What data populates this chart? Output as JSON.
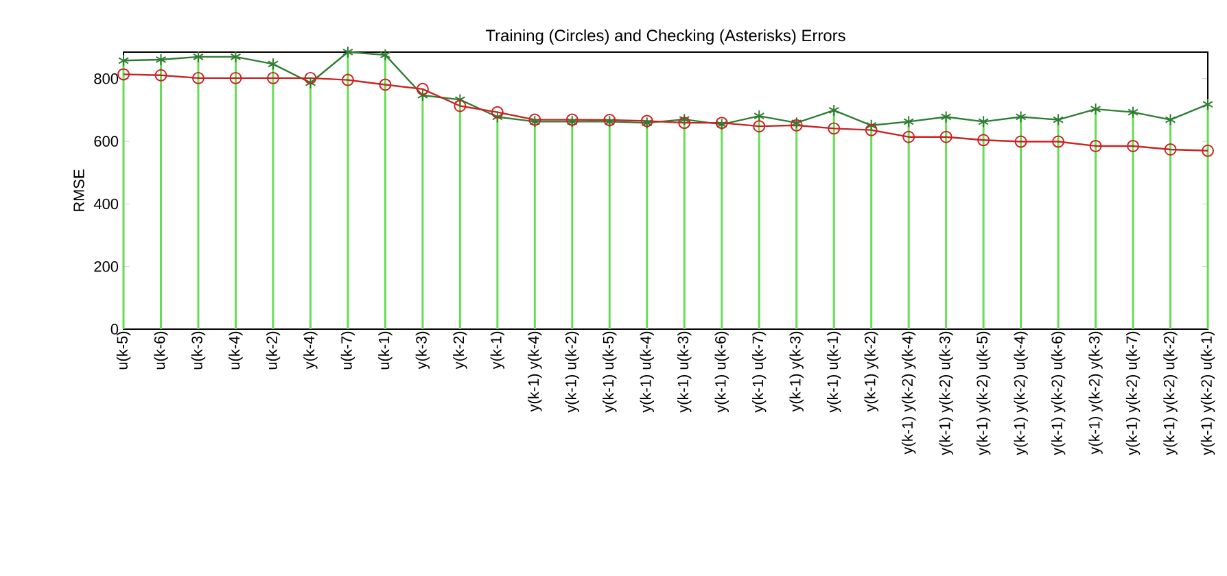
{
  "chart_data": {
    "type": "line",
    "title": "Training (Circles) and Checking (Asterisks) Errors",
    "ylabel": "RMSE",
    "categories": [
      "u(k-5)",
      "u(k-6)",
      "u(k-3)",
      "u(k-4)",
      "u(k-2)",
      "y(k-4)",
      "u(k-7)",
      "u(k-1)",
      "y(k-3)",
      "y(k-2)",
      "y(k-1)",
      "y(k-1) y(k-4)",
      "y(k-1) u(k-2)",
      "y(k-1) u(k-5)",
      "y(k-1) u(k-4)",
      "y(k-1) u(k-3)",
      "y(k-1) u(k-6)",
      "y(k-1) u(k-7)",
      "y(k-1) y(k-3)",
      "y(k-1) u(k-1)",
      "y(k-1) y(k-2)",
      "y(k-1) y(k-2) y(k-4)",
      "y(k-1) y(k-2) u(k-3)",
      "y(k-1) y(k-2) u(k-5)",
      "y(k-1) y(k-2) u(k-4)",
      "y(k-1) y(k-2) u(k-6)",
      "y(k-1) y(k-2) y(k-3)",
      "y(k-1) y(k-2) u(k-7)",
      "y(k-1) y(k-2) u(k-2)",
      "y(k-1) y(k-2) u(k-1)"
    ],
    "series": [
      {
        "type": "bar",
        "color": "#66dd55",
        "values": [
          858,
          861,
          870,
          870,
          847,
          787,
          885,
          876,
          747,
          733,
          678,
          663,
          663,
          663,
          659,
          670,
          654,
          681,
          659,
          699,
          651,
          663,
          678,
          663,
          678,
          669,
          703,
          693,
          669,
          718
        ]
      },
      {
        "color": "#2e7d32",
        "marker": "cross",
        "values": [
          858,
          861,
          870,
          870,
          847,
          787,
          885,
          876,
          747,
          733,
          678,
          663,
          663,
          663,
          659,
          670,
          654,
          681,
          659,
          699,
          651,
          663,
          678,
          663,
          678,
          669,
          703,
          693,
          669,
          718
        ]
      },
      {
        "color": "#cc2222",
        "marker": "circle",
        "values": [
          814,
          811,
          802,
          802,
          802,
          802,
          796,
          781,
          767,
          713,
          693,
          669,
          669,
          668,
          665,
          659,
          659,
          648,
          651,
          641,
          636,
          614,
          614,
          604,
          599,
          599,
          585,
          585,
          574,
          570
        ]
      }
    ],
    "ylim": [
      0,
      885
    ],
    "yticks": [
      0,
      200,
      400,
      600,
      800
    ],
    "line_style": "solid"
  }
}
